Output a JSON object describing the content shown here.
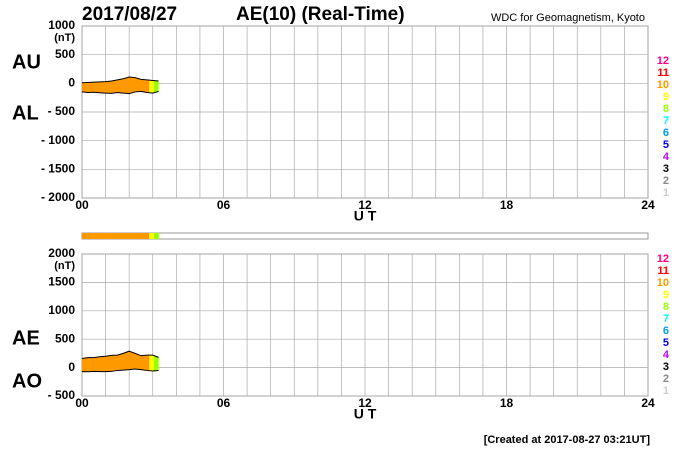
{
  "header": {
    "date": "2017/08/27",
    "title": "AE(10) (Real-Time)",
    "source": "WDC for Geomagnetism, Kyoto"
  },
  "chart_data": [
    {
      "type": "range-area",
      "unit": "(nT)",
      "xlabel": "U T",
      "x": [
        0,
        0.25,
        0.5,
        0.75,
        1,
        1.25,
        1.5,
        1.75,
        2,
        2.25,
        2.5,
        2.75,
        3,
        3.25
      ],
      "series": [
        {
          "name": "AU",
          "color": "#000000",
          "values": [
            10,
            15,
            20,
            25,
            30,
            40,
            60,
            80,
            110,
            100,
            70,
            60,
            50,
            40
          ]
        },
        {
          "name": "AL",
          "color": "#000000",
          "values": [
            -150,
            -160,
            -155,
            -165,
            -170,
            -175,
            -160,
            -170,
            -180,
            -150,
            -140,
            -160,
            -170,
            -140
          ]
        }
      ],
      "xlim": [
        0,
        24
      ],
      "xticks": [
        {
          "value": 0,
          "label": "00"
        },
        {
          "value": 6,
          "label": "06"
        },
        12,
        18,
        24
      ],
      "xgrid": [
        0,
        1,
        2,
        3,
        4,
        5,
        6,
        7,
        8,
        9,
        10,
        11,
        12,
        13,
        14,
        15,
        16,
        17,
        18,
        19,
        20,
        21,
        22,
        23,
        24
      ],
      "ylim": [
        -2000,
        1000
      ],
      "yticks": [
        1000,
        500,
        0,
        {
          "value": -500,
          "label": "- 500"
        },
        {
          "value": -1000,
          "label": "- 1000"
        },
        {
          "value": -1500,
          "label": "- 1500"
        },
        {
          "value": -2000,
          "label": "- 2000"
        }
      ],
      "grid": true
    },
    {
      "type": "range-area",
      "unit": "(nT)",
      "xlabel": "U T",
      "x": [
        0,
        0.25,
        0.5,
        0.75,
        1,
        1.25,
        1.5,
        1.75,
        2,
        2.25,
        2.5,
        2.75,
        3,
        3.25
      ],
      "series": [
        {
          "name": "AE",
          "color": "#000000",
          "values": [
            160,
            175,
            175,
            190,
            200,
            215,
            220,
            250,
            290,
            250,
            210,
            220,
            220,
            180
          ]
        },
        {
          "name": "AO",
          "color": "#000000",
          "values": [
            -70,
            -72.5,
            -67.5,
            -70,
            -70,
            -67.5,
            -50,
            -45,
            -35,
            -25,
            -35,
            -50,
            -60,
            -50
          ]
        }
      ],
      "xlim": [
        0,
        24
      ],
      "xticks": [
        {
          "value": 0,
          "label": "00"
        },
        {
          "value": 6,
          "label": "06"
        },
        12,
        18,
        24
      ],
      "xgrid": [
        0,
        1,
        2,
        3,
        4,
        5,
        6,
        7,
        8,
        9,
        10,
        11,
        12,
        13,
        14,
        15,
        16,
        17,
        18,
        19,
        20,
        21,
        22,
        23,
        24
      ],
      "ylim": [
        -500,
        2000
      ],
      "yticks": [
        2000,
        1500,
        1000,
        500,
        0,
        {
          "value": -500,
          "label": "- 500"
        }
      ],
      "grid": true
    }
  ],
  "station_legend": [
    {
      "stations": 12,
      "color": "#ff0080"
    },
    {
      "stations": 11,
      "color": "#ff0000"
    },
    {
      "stations": 10,
      "color": "#ff9900"
    },
    {
      "stations": 9,
      "color": "#ffff00"
    },
    {
      "stations": 8,
      "color": "#99ff00"
    },
    {
      "stations": 7,
      "color": "#00ffff"
    },
    {
      "stations": 6,
      "color": "#0099ff"
    },
    {
      "stations": 5,
      "color": "#0000ff"
    },
    {
      "stations": 4,
      "color": "#cc00ff"
    },
    {
      "stations": 3,
      "color": "#000000"
    },
    {
      "stations": 2,
      "color": "#888888"
    },
    {
      "stations": 1,
      "color": "#cccccc"
    }
  ],
  "station_bands": [
    {
      "from": 0,
      "to": 2.85,
      "stations": 10
    },
    {
      "from": 2.85,
      "to": 3.05,
      "stations": 9
    },
    {
      "from": 3.05,
      "to": 3.25,
      "stations": 8
    }
  ],
  "footer": "[Created at 2017-08-27 03:21UT]"
}
